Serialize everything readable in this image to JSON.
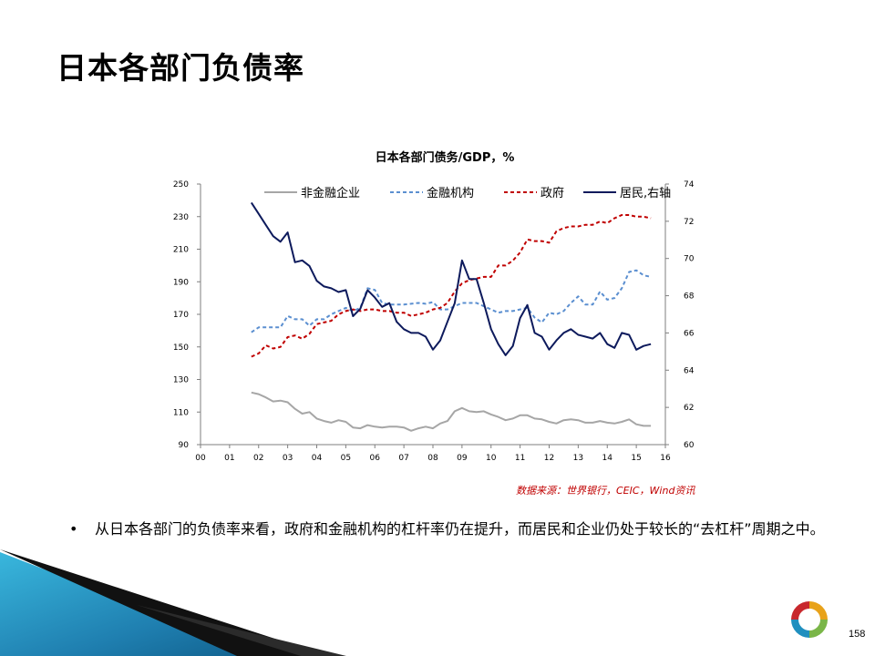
{
  "slide": {
    "title": "日本各部门负债率",
    "source": "数据来源：世界银行，CEIC，Wind资讯",
    "bullet": "从日本各部门的负债率来看，政府和金融机构的杠杆率仍在提升，而居民和企业仍处于较长的“去杠杆”周期之中。",
    "page_number": "158"
  },
  "colors": {
    "nonfin": "#a6a6a6",
    "fin": "#5b8fd0",
    "gov": "#c00000",
    "household": "#0d1a5c",
    "accent": "#1f8fbf"
  },
  "chart_data": {
    "type": "line",
    "title": "日本各部门债务/GDP，%",
    "x_ticks": [
      "00",
      "01",
      "02",
      "03",
      "04",
      "05",
      "06",
      "07",
      "08",
      "09",
      "10",
      "11",
      "12",
      "13",
      "14",
      "15",
      "16"
    ],
    "x_range": [
      0,
      16
    ],
    "y_left": {
      "range": [
        90,
        250
      ],
      "ticks": [
        90,
        110,
        130,
        150,
        170,
        190,
        210,
        230,
        250
      ]
    },
    "y_right": {
      "range": [
        60,
        74
      ],
      "ticks": [
        60,
        62,
        64,
        66,
        68,
        70,
        72,
        74
      ]
    },
    "legend_position": "top",
    "grid": false,
    "series": [
      {
        "name": "非金融企业",
        "axis": "left",
        "style": "solid",
        "color": "#a6a6a6",
        "values": [
          [
            1.75,
            122
          ],
          [
            2,
            121
          ],
          [
            2.25,
            119
          ],
          [
            2.5,
            116.5
          ],
          [
            2.75,
            117
          ],
          [
            3,
            116
          ],
          [
            3.25,
            112
          ],
          [
            3.5,
            109
          ],
          [
            3.75,
            110
          ],
          [
            4,
            106
          ],
          [
            4.25,
            104.5
          ],
          [
            4.5,
            103.5
          ],
          [
            4.75,
            105
          ],
          [
            5,
            104
          ],
          [
            5.25,
            100.5
          ],
          [
            5.5,
            100
          ],
          [
            5.75,
            102
          ],
          [
            6,
            101
          ],
          [
            6.25,
            100.5
          ],
          [
            6.5,
            101
          ],
          [
            6.75,
            101
          ],
          [
            7,
            100.5
          ],
          [
            7.25,
            98.5
          ],
          [
            7.5,
            100
          ],
          [
            7.75,
            101
          ],
          [
            8,
            100
          ],
          [
            8.25,
            103
          ],
          [
            8.5,
            104.5
          ],
          [
            8.75,
            110.5
          ],
          [
            9,
            112.5
          ],
          [
            9.25,
            110.5
          ],
          [
            9.5,
            110
          ],
          [
            9.75,
            110.5
          ],
          [
            10,
            108.5
          ],
          [
            10.25,
            107
          ],
          [
            10.5,
            105
          ],
          [
            10.75,
            106
          ],
          [
            11,
            108
          ],
          [
            11.25,
            108
          ],
          [
            11.5,
            106
          ],
          [
            11.75,
            105.5
          ],
          [
            12,
            104
          ],
          [
            12.25,
            103
          ],
          [
            12.5,
            105
          ],
          [
            12.75,
            105.5
          ],
          [
            13,
            105
          ],
          [
            13.25,
            103.5
          ],
          [
            13.5,
            103.5
          ],
          [
            13.75,
            104.5
          ],
          [
            14,
            103.5
          ],
          [
            14.25,
            103
          ],
          [
            14.5,
            104
          ],
          [
            14.75,
            105.5
          ],
          [
            15,
            102.5
          ],
          [
            15.25,
            101.5
          ],
          [
            15.5,
            101.5
          ]
        ]
      },
      {
        "name": "金融机构",
        "axis": "left",
        "style": "dashed",
        "color": "#5b8fd0",
        "values": [
          [
            1.75,
            159
          ],
          [
            2,
            162
          ],
          [
            2.25,
            162
          ],
          [
            2.5,
            162
          ],
          [
            2.75,
            162
          ],
          [
            3,
            169
          ],
          [
            3.25,
            167
          ],
          [
            3.5,
            167
          ],
          [
            3.75,
            163
          ],
          [
            4,
            167
          ],
          [
            4.25,
            167
          ],
          [
            4.5,
            170
          ],
          [
            4.75,
            172
          ],
          [
            5,
            174
          ],
          [
            5.25,
            172
          ],
          [
            5.5,
            174
          ],
          [
            5.75,
            186
          ],
          [
            6,
            185
          ],
          [
            6.25,
            177
          ],
          [
            6.5,
            176
          ],
          [
            6.75,
            176
          ],
          [
            7,
            176
          ],
          [
            7.25,
            176.5
          ],
          [
            7.5,
            177
          ],
          [
            7.75,
            176.5
          ],
          [
            8,
            177.5
          ],
          [
            8.25,
            173
          ],
          [
            8.5,
            173
          ],
          [
            8.75,
            175
          ],
          [
            9,
            177
          ],
          [
            9.25,
            177
          ],
          [
            9.5,
            177
          ],
          [
            9.75,
            175
          ],
          [
            10,
            173
          ],
          [
            10.25,
            171
          ],
          [
            10.5,
            172
          ],
          [
            10.75,
            172
          ],
          [
            11,
            173
          ],
          [
            11.25,
            174
          ],
          [
            11.5,
            168
          ],
          [
            11.75,
            165
          ],
          [
            12,
            171
          ],
          [
            12.25,
            170
          ],
          [
            12.5,
            172
          ],
          [
            12.75,
            177
          ],
          [
            13,
            181
          ],
          [
            13.25,
            176
          ],
          [
            13.5,
            176
          ],
          [
            13.75,
            184
          ],
          [
            14,
            179
          ],
          [
            14.25,
            180
          ],
          [
            14.5,
            186
          ],
          [
            14.75,
            196
          ],
          [
            15,
            197
          ],
          [
            15.25,
            194
          ],
          [
            15.5,
            193
          ]
        ]
      },
      {
        "name": "政府",
        "axis": "left",
        "style": "dashed",
        "color": "#c00000",
        "values": [
          [
            1.75,
            144
          ],
          [
            2,
            146
          ],
          [
            2.25,
            151
          ],
          [
            2.5,
            149
          ],
          [
            2.75,
            150
          ],
          [
            3,
            156
          ],
          [
            3.25,
            157
          ],
          [
            3.5,
            155
          ],
          [
            3.75,
            158
          ],
          [
            4,
            164
          ],
          [
            4.25,
            165
          ],
          [
            4.5,
            166
          ],
          [
            4.75,
            170
          ],
          [
            5,
            172
          ],
          [
            5.25,
            173
          ],
          [
            5.5,
            172
          ],
          [
            5.75,
            173
          ],
          [
            6,
            173
          ],
          [
            6.25,
            172
          ],
          [
            6.5,
            172
          ],
          [
            6.75,
            171
          ],
          [
            7,
            171
          ],
          [
            7.25,
            169
          ],
          [
            7.5,
            170
          ],
          [
            7.75,
            171
          ],
          [
            8,
            173
          ],
          [
            8.25,
            174
          ],
          [
            8.5,
            177
          ],
          [
            8.75,
            184
          ],
          [
            9,
            189
          ],
          [
            9.25,
            191
          ],
          [
            9.5,
            192
          ],
          [
            9.75,
            193
          ],
          [
            10,
            193
          ],
          [
            10.25,
            200
          ],
          [
            10.5,
            200
          ],
          [
            10.75,
            203
          ],
          [
            11,
            208
          ],
          [
            11.25,
            216
          ],
          [
            11.5,
            215
          ],
          [
            11.75,
            215
          ],
          [
            12,
            214
          ],
          [
            12.25,
            221
          ],
          [
            12.5,
            223
          ],
          [
            12.75,
            224
          ],
          [
            13,
            224
          ],
          [
            13.25,
            225
          ],
          [
            13.5,
            225
          ],
          [
            13.75,
            227
          ],
          [
            14,
            226
          ],
          [
            14.25,
            229
          ],
          [
            14.5,
            231
          ],
          [
            14.75,
            231
          ],
          [
            15,
            230
          ],
          [
            15.25,
            230
          ],
          [
            15.5,
            229
          ]
        ]
      },
      {
        "name": "居民,右轴",
        "axis": "right",
        "style": "solid",
        "color": "#0d1a5c",
        "values": [
          [
            1.75,
            73
          ],
          [
            2,
            72.4
          ],
          [
            2.25,
            71.8
          ],
          [
            2.5,
            71.2
          ],
          [
            2.75,
            70.9
          ],
          [
            3,
            71.4
          ],
          [
            3.25,
            69.8
          ],
          [
            3.5,
            69.9
          ],
          [
            3.75,
            69.6
          ],
          [
            4,
            68.8
          ],
          [
            4.25,
            68.5
          ],
          [
            4.5,
            68.4
          ],
          [
            4.75,
            68.2
          ],
          [
            5,
            68.3
          ],
          [
            5.25,
            66.9
          ],
          [
            5.5,
            67.3
          ],
          [
            5.75,
            68.3
          ],
          [
            6,
            67.9
          ],
          [
            6.25,
            67.4
          ],
          [
            6.5,
            67.6
          ],
          [
            6.75,
            66.6
          ],
          [
            7,
            66.2
          ],
          [
            7.25,
            66
          ],
          [
            7.5,
            66
          ],
          [
            7.75,
            65.8
          ],
          [
            8,
            65.1
          ],
          [
            8.25,
            65.6
          ],
          [
            8.5,
            66.6
          ],
          [
            8.75,
            67.6
          ],
          [
            9,
            69.9
          ],
          [
            9.25,
            68.9
          ],
          [
            9.5,
            68.9
          ],
          [
            9.75,
            67.6
          ],
          [
            10,
            66.2
          ],
          [
            10.25,
            65.4
          ],
          [
            10.5,
            64.8
          ],
          [
            10.75,
            65.3
          ],
          [
            11,
            66.8
          ],
          [
            11.25,
            67.5
          ],
          [
            11.5,
            66
          ],
          [
            11.75,
            65.8
          ],
          [
            12,
            65.1
          ],
          [
            12.25,
            65.6
          ],
          [
            12.5,
            66
          ],
          [
            12.75,
            66.2
          ],
          [
            13,
            65.9
          ],
          [
            13.25,
            65.8
          ],
          [
            13.5,
            65.7
          ],
          [
            13.75,
            66
          ],
          [
            14,
            65.4
          ],
          [
            14.25,
            65.2
          ],
          [
            14.5,
            66
          ],
          [
            14.75,
            65.9
          ],
          [
            15,
            65.1
          ],
          [
            15.25,
            65.3
          ],
          [
            15.5,
            65.4
          ]
        ]
      }
    ]
  }
}
